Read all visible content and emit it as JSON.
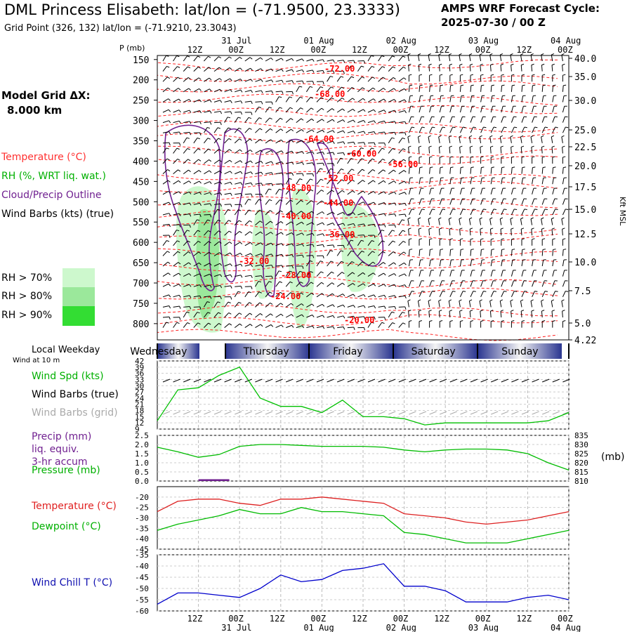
{
  "header": {
    "title": "DML Princess Elisabeth:  lat/lon = (-71.9500, 23.3333)",
    "subtitle": "Grid Point (326, 132) lat/lon = (-71.9210, 23.3043)",
    "cycle_label": "AMPS WRF Forecast Cycle:",
    "cycle_value": "2025-07-30 / 00  Z"
  },
  "model_grid": {
    "label": "Model Grid ΔX:",
    "value": "8.000 km"
  },
  "legend": {
    "temperature": "Temperature (°C)",
    "rh": "RH (%, WRT liq. wat.)",
    "cloud": "Cloud/Precip Outline",
    "wind": "Wind Barbs (kts) (true)",
    "rh70": "RH > 70%",
    "rh80": "RH > 80%",
    "rh90": "RH > 90%"
  },
  "colors": {
    "temperature": "#ff0000",
    "rh": "#00c000",
    "cloud": "#702090",
    "wind": "#000000",
    "wind_grid": "#aaaaaa",
    "precip": "#702090",
    "pressure": "#00bb00",
    "dewpoint": "#00bb00",
    "windchill": "#0000cc",
    "rh70": "#cdf8cd",
    "rh80": "#9be89b",
    "rh90": "#33dd33",
    "day_bar": "#3a4aa0"
  },
  "time_axis": {
    "hour_labels": [
      "12Z",
      "00Z",
      "12Z",
      "00Z",
      "12Z",
      "00Z",
      "12Z",
      "00Z",
      "12Z",
      "00Z"
    ],
    "date_labels": [
      "31 Jul",
      "01 Aug",
      "02 Aug",
      "03 Aug",
      "04 Aug"
    ]
  },
  "weekday": {
    "label": "Local Weekday",
    "days": [
      "Wednesday",
      "Thursday",
      "Friday",
      "Saturday",
      "Sunday"
    ]
  },
  "axes_text": {
    "p_mb": "P (mb)",
    "kft": "Kft MSL",
    "unit_mb": "(mb)",
    "wind10": "Wind at 10 m"
  },
  "chart_data": [
    {
      "type": "heatmap",
      "name": "cross-section",
      "ylabel": "P (mb)",
      "y_ticks": [
        150,
        200,
        250,
        300,
        350,
        400,
        450,
        500,
        550,
        600,
        650,
        700,
        750,
        800
      ],
      "right_ticks": [
        "40.0",
        "35.0",
        "30.0",
        "25.0",
        "22.5",
        "20.0",
        "17.5",
        "15.0",
        "12.5",
        "10.0",
        "7.5",
        "5.0",
        "4.22"
      ],
      "temperature_contour_labels": [
        "-72.00",
        "-68.00",
        "-64.00",
        "-60.00",
        "-56.00",
        "-52.00",
        "-48.00",
        "-44.00",
        "-40.00",
        "-36.00",
        "-32.00",
        "-28.00",
        "-24.00",
        "-20.00"
      ]
    },
    {
      "type": "line",
      "name": "wind",
      "legend": [
        "Wind Spd (kts)",
        "Wind Barbs (true)",
        "Wind Barbs (grid)"
      ],
      "y_ticks": [
        9,
        12,
        15,
        18,
        21,
        24,
        27,
        30,
        33,
        36,
        39,
        42
      ],
      "ylim": [
        9,
        42
      ],
      "x_hours": [
        0,
        6,
        12,
        18,
        24,
        30,
        36,
        42,
        48,
        54,
        60,
        66,
        72,
        78,
        84,
        90,
        96,
        102,
        108,
        114,
        120
      ],
      "values": [
        13,
        28,
        29,
        35,
        39,
        24,
        20,
        20,
        17,
        23,
        15,
        15,
        14,
        11,
        12,
        12,
        12,
        12,
        12,
        13,
        17
      ]
    },
    {
      "type": "line",
      "name": "precip-pressure",
      "legend": [
        "Precip (mm)",
        "liq. equiv.",
        "3-hr accum",
        "Pressure (mb)"
      ],
      "y_ticks": [
        "0.0",
        "0.5",
        "1.0",
        "1.5",
        "2.0",
        "2.5"
      ],
      "ylim": [
        0,
        2.5
      ],
      "right_ticks": [
        "835",
        "830",
        "825",
        "820",
        "815",
        "810"
      ],
      "right_lim": [
        810,
        835
      ],
      "x_hours": [
        0,
        6,
        12,
        18,
        24,
        30,
        36,
        42,
        48,
        54,
        60,
        66,
        72,
        78,
        84,
        90,
        96,
        102,
        108,
        114,
        120
      ],
      "pressure": [
        828.5,
        826,
        823,
        824.5,
        829,
        830,
        830,
        829.5,
        829,
        829,
        829,
        828.5,
        827,
        826,
        827,
        827.5,
        827.5,
        827,
        825,
        820,
        816
      ],
      "precip": [
        {
          "from": 12,
          "to": 21,
          "value": 0.06
        }
      ]
    },
    {
      "type": "line",
      "name": "temperature-dewpoint",
      "legend": [
        "Temperature (°C)",
        "Dewpoint (°C)"
      ],
      "y_ticks": [
        -20,
        -25,
        -30,
        -35,
        -40,
        -45
      ],
      "ylim": [
        -45,
        -15
      ],
      "x_hours": [
        0,
        6,
        12,
        18,
        24,
        30,
        36,
        42,
        48,
        54,
        60,
        66,
        72,
        78,
        84,
        90,
        96,
        102,
        108,
        114,
        120
      ],
      "temperature": [
        -27,
        -22,
        -21,
        -21,
        -23,
        -24,
        -21,
        -21,
        -20,
        -21,
        -22,
        -23,
        -28,
        -29,
        -30,
        -32,
        -33,
        -32,
        -31,
        -29,
        -27
      ],
      "dewpoint": [
        -36,
        -33,
        -31,
        -29,
        -26,
        -28,
        -28,
        -25,
        -27,
        -27,
        -28,
        -29,
        -37,
        -38,
        -40,
        -42,
        -42,
        -42,
        -40,
        -38,
        -36
      ]
    },
    {
      "type": "line",
      "name": "windchill",
      "legend": [
        "Wind Chill T (°C)"
      ],
      "y_ticks": [
        -35,
        -40,
        -45,
        -50,
        -55,
        -60
      ],
      "ylim": [
        -60,
        -35
      ],
      "x_hours": [
        0,
        6,
        12,
        18,
        24,
        30,
        36,
        42,
        48,
        54,
        60,
        66,
        72,
        78,
        84,
        90,
        96,
        102,
        108,
        114,
        120
      ],
      "windchill": [
        -57,
        -52,
        -52,
        -53,
        -54,
        -50,
        -44,
        -47,
        -46,
        -42,
        -41,
        -39,
        -49,
        -49,
        -51,
        -56,
        -56,
        -56,
        -54,
        -53,
        -55
      ]
    }
  ]
}
